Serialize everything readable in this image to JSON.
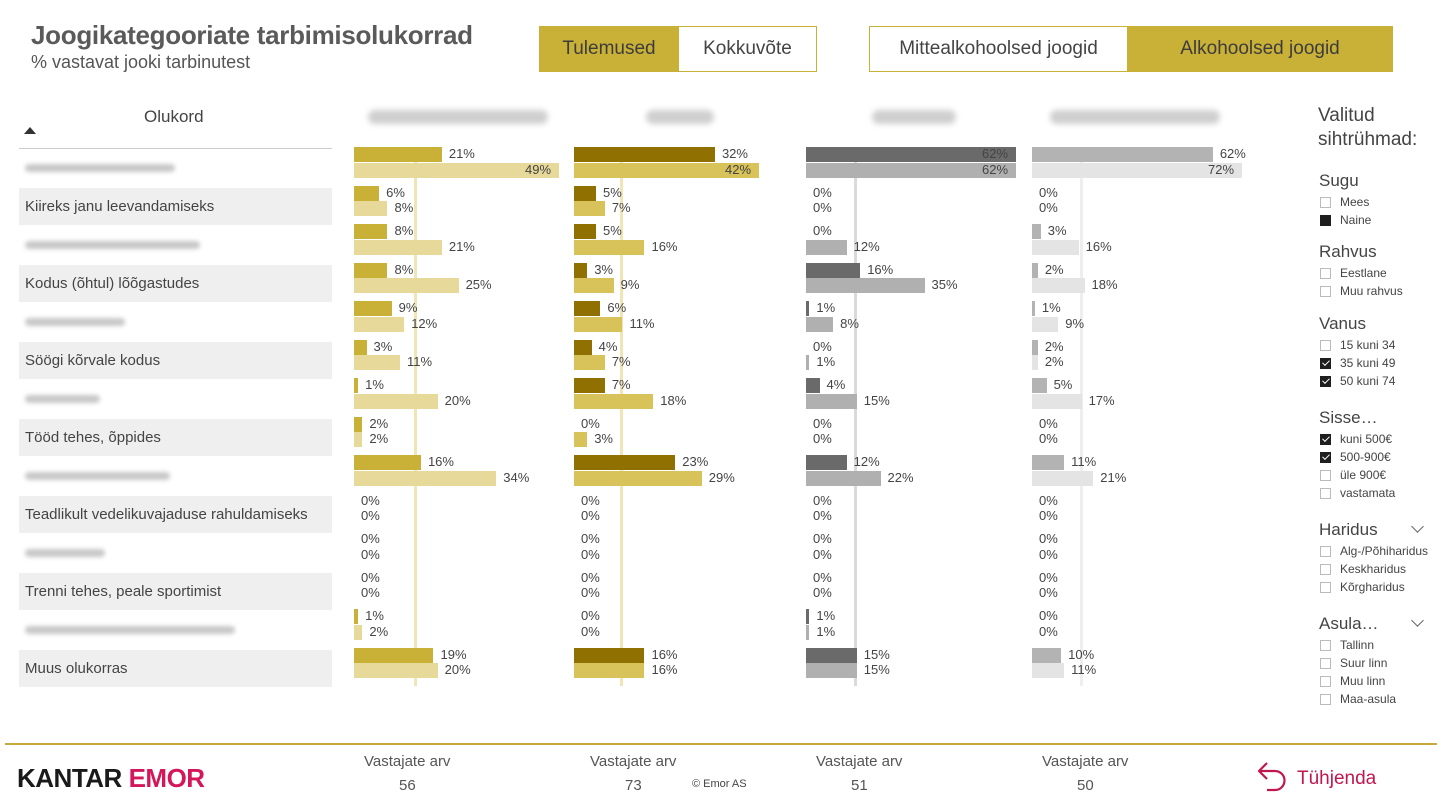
{
  "header": {
    "title": "Joogikategooriate tarbimisolukorrad",
    "subtitle": "% vastavat jooki tarbinutest"
  },
  "view_toggle": {
    "options": [
      "Tulemused",
      "Kokkuvõte"
    ],
    "selected": "Tulemused"
  },
  "drink_toggle": {
    "options": [
      "Mittealkohoolsed joogid",
      "Alkohoolsed joogid"
    ],
    "selected": "Alkohoolsed joogid"
  },
  "table": {
    "column_header": "Olukord",
    "rows": [
      {
        "label": "",
        "redacted": true
      },
      {
        "label": "Kiireks janu leevandamiseks",
        "redacted": false
      },
      {
        "label": "",
        "redacted": true
      },
      {
        "label": "Kodus (õhtul) lõõgastudes",
        "redacted": false
      },
      {
        "label": "",
        "redacted": true
      },
      {
        "label": "Söögi kõrvale kodus",
        "redacted": false
      },
      {
        "label": "",
        "redacted": true
      },
      {
        "label": "Tööd tehes, õppides",
        "redacted": false
      },
      {
        "label": "",
        "redacted": true
      },
      {
        "label": "Teadlikult vedelikuvajaduse rahuldamiseks",
        "redacted": false
      },
      {
        "label": "",
        "redacted": true
      },
      {
        "label": "Trenni tehes, peale sportimist",
        "redacted": false
      },
      {
        "label": "",
        "redacted": true
      },
      {
        "label": "Muus olukorras",
        "redacted": false
      }
    ]
  },
  "chart_data": {
    "type": "bar",
    "unit": "%",
    "categories_ref": "table.rows",
    "panels": [
      {
        "name": "",
        "colors": {
          "dark": "#c9b037",
          "light": "#e6d99a",
          "ref": "#f0e6b5"
        },
        "series_selected": [
          21,
          6,
          8,
          8,
          9,
          3,
          1,
          2,
          16,
          0,
          0,
          0,
          1,
          19
        ],
        "series_average": [
          49,
          8,
          21,
          25,
          12,
          11,
          20,
          2,
          34,
          0,
          0,
          0,
          2,
          20
        ]
      },
      {
        "name": "",
        "colors": {
          "dark": "#8f7000",
          "light": "#d8c25a",
          "ref": "#f0e6b5"
        },
        "series_selected": [
          32,
          5,
          5,
          3,
          6,
          4,
          7,
          0,
          23,
          0,
          0,
          0,
          0,
          16
        ],
        "series_average": [
          42,
          7,
          16,
          9,
          11,
          7,
          18,
          3,
          29,
          0,
          0,
          0,
          0,
          16
        ]
      },
      {
        "name": "",
        "colors": {
          "dark": "#6a6a6a",
          "light": "#b0b0b0",
          "ref": "#dadada"
        },
        "series_selected": [
          62,
          0,
          0,
          16,
          1,
          0,
          4,
          0,
          12,
          0,
          0,
          0,
          1,
          15
        ],
        "series_average": [
          62,
          0,
          12,
          35,
          8,
          1,
          15,
          0,
          22,
          0,
          0,
          0,
          1,
          15
        ]
      },
      {
        "name": "",
        "colors": {
          "dark": "#b3b3b3",
          "light": "#e4e4e4",
          "ref": "#eeeeee"
        },
        "series_selected": [
          62,
          0,
          3,
          2,
          1,
          2,
          5,
          0,
          11,
          0,
          0,
          0,
          0,
          10
        ],
        "series_average": [
          72,
          0,
          16,
          18,
          9,
          2,
          17,
          0,
          21,
          0,
          0,
          0,
          0,
          11
        ]
      }
    ]
  },
  "respondents": [
    {
      "label": "Vastajate arv",
      "count": "56"
    },
    {
      "label": "Vastajate arv",
      "count": "73"
    },
    {
      "label": "Vastajate arv",
      "count": "51"
    },
    {
      "label": "Vastajate arv",
      "count": "50"
    }
  ],
  "copyright": "© Emor AS",
  "logo": {
    "part1": "KANTAR",
    "part2": "EMOR"
  },
  "clear_button": "Tühjenda",
  "filters": {
    "title": "Valitud sihtrühmad:",
    "groups": [
      {
        "name": "Sugu",
        "collapsible": false,
        "options": [
          {
            "label": "Mees",
            "state": "unchecked"
          },
          {
            "label": "Naine",
            "state": "filled"
          }
        ]
      },
      {
        "name": "Rahvus",
        "collapsible": false,
        "options": [
          {
            "label": "Eestlane",
            "state": "unchecked"
          },
          {
            "label": "Muu rahvus",
            "state": "unchecked"
          }
        ]
      },
      {
        "name": "Vanus",
        "collapsible": false,
        "options": [
          {
            "label": "15 kuni 34",
            "state": "unchecked"
          },
          {
            "label": "35 kuni 49",
            "state": "checked"
          },
          {
            "label": "50 kuni 74",
            "state": "checked"
          }
        ]
      },
      {
        "name": "Sisse…",
        "collapsible": false,
        "options": [
          {
            "label": "kuni 500€",
            "state": "checked"
          },
          {
            "label": "500-900€",
            "state": "checked"
          },
          {
            "label": "üle 900€",
            "state": "unchecked"
          },
          {
            "label": "vastamata",
            "state": "unchecked"
          }
        ]
      },
      {
        "name": "Haridus",
        "collapsible": true,
        "options": [
          {
            "label": "Alg-/Põhiharidus",
            "state": "unchecked"
          },
          {
            "label": "Keskharidus",
            "state": "unchecked"
          },
          {
            "label": "Kõrgharidus",
            "state": "unchecked"
          }
        ]
      },
      {
        "name": "Asula…",
        "collapsible": true,
        "options": [
          {
            "label": "Tallinn",
            "state": "unchecked"
          },
          {
            "label": "Suur linn",
            "state": "unchecked"
          },
          {
            "label": "Muu linn",
            "state": "unchecked"
          },
          {
            "label": "Maa-asula",
            "state": "unchecked"
          }
        ]
      }
    ]
  }
}
